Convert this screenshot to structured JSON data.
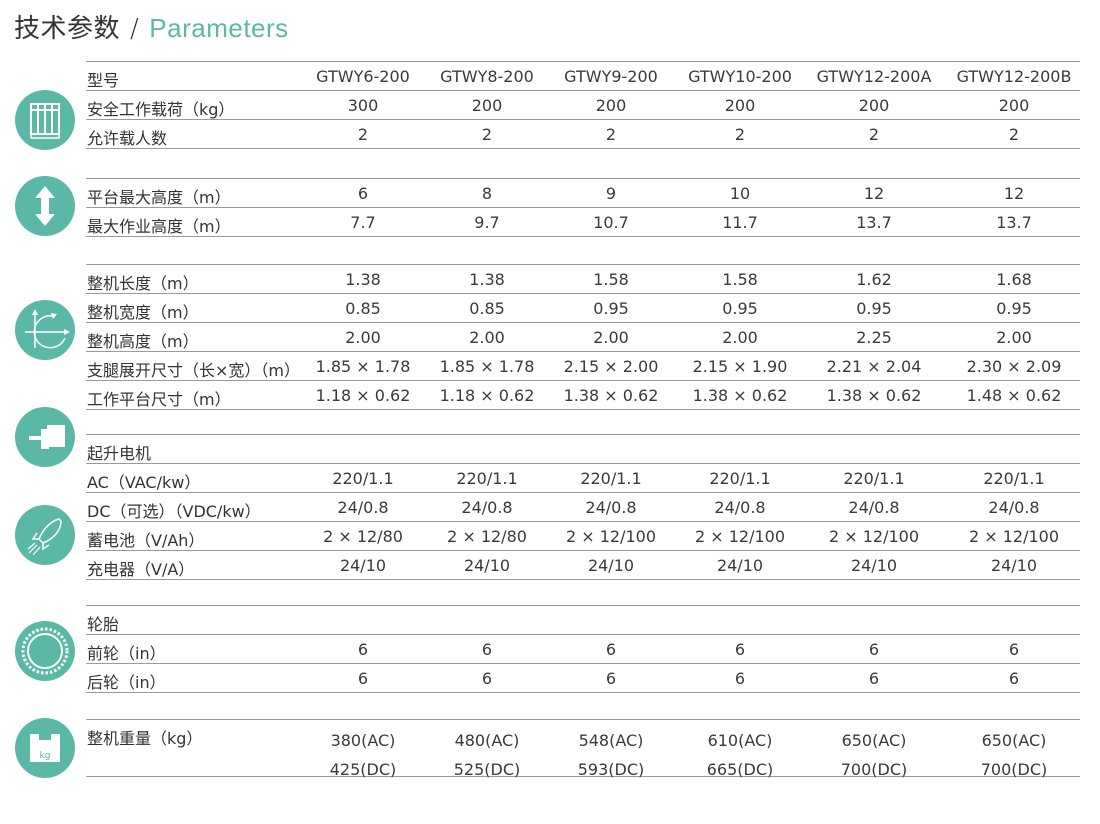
{
  "title": {
    "zh": "技术参数",
    "separator": "/",
    "en": "Parameters"
  },
  "colors": {
    "accent": "#5cb8a6",
    "rule": "#9a9a9a",
    "text": "#3a3a3a"
  },
  "groups": [
    {
      "icon": "cage-platform-icon",
      "rows": [
        {
          "label": "型号",
          "values": [
            "GTWY6-200",
            "GTWY8-200",
            "GTWY9-200",
            "GTWY10-200",
            "GTWY12-200A",
            "GTWY12-200B"
          ]
        },
        {
          "label": "安全工作载荷（kg）",
          "values": [
            "300",
            "200",
            "200",
            "200",
            "200",
            "200"
          ]
        },
        {
          "label": "允许载人数",
          "values": [
            "2",
            "2",
            "2",
            "2",
            "2",
            "2"
          ]
        }
      ]
    },
    {
      "icon": "vertical-arrows-icon",
      "rows": [
        {
          "label": "平台最大高度（m）",
          "values": [
            "6",
            "8",
            "9",
            "10",
            "12",
            "12"
          ]
        },
        {
          "label": "最大作业高度（m）",
          "values": [
            "7.7",
            "9.7",
            "10.7",
            "11.7",
            "13.7",
            "13.7"
          ]
        }
      ]
    },
    {
      "icon": "dimensions-axes-icon",
      "rows": [
        {
          "label": "整机长度（m）",
          "values": [
            "1.38",
            "1.38",
            "1.58",
            "1.58",
            "1.62",
            "1.68"
          ]
        },
        {
          "label": "整机宽度（m）",
          "values": [
            "0.85",
            "0.85",
            "0.95",
            "0.95",
            "0.95",
            "0.95"
          ]
        },
        {
          "label": "整机高度（m）",
          "values": [
            "2.00",
            "2.00",
            "2.00",
            "2.00",
            "2.25",
            "2.00"
          ]
        },
        {
          "label": "支腿展开尺寸（长×宽）（m）",
          "values": [
            "1.85 × 1.78",
            "1.85 × 1.78",
            "2.15 × 2.00",
            "2.15 × 1.90",
            "2.21 × 2.04",
            "2.30 × 2.09"
          ]
        },
        {
          "label": "工作平台尺寸（m）",
          "values": [
            "1.18 × 0.62",
            "1.18 × 0.62",
            "1.38 × 0.62",
            "1.38 × 0.62",
            "1.38 × 0.62",
            "1.48 × 0.62"
          ]
        }
      ]
    },
    {
      "icon": "motor-icon",
      "rows": [
        {
          "label": "起升电机",
          "values": []
        },
        {
          "label": "AC（VAC/kw）",
          "values": [
            "220/1.1",
            "220/1.1",
            "220/1.1",
            "220/1.1",
            "220/1.1",
            "220/1.1"
          ]
        },
        {
          "label": "DC（可选）（VDC/kw）",
          "values": [
            "24/0.8",
            "24/0.8",
            "24/0.8",
            "24/0.8",
            "24/0.8",
            "24/0.8"
          ]
        },
        {
          "label": "蓄电池（V/Ah）",
          "values": [
            "2 × 12/80",
            "2 × 12/80",
            "2 × 12/100",
            "2 × 12/100",
            "2 × 12/100",
            "2 × 12/100"
          ]
        },
        {
          "label": "充电器（V/A）",
          "values": [
            "24/10",
            "24/10",
            "24/10",
            "24/10",
            "24/10",
            "24/10"
          ]
        }
      ]
    },
    {
      "icon": "tire-gear-icon",
      "rows": [
        {
          "label": "轮胎",
          "values": []
        },
        {
          "label": "前轮（in）",
          "values": [
            "6",
            "6",
            "6",
            "6",
            "6",
            "6"
          ]
        },
        {
          "label": "后轮（in）",
          "values": [
            "6",
            "6",
            "6",
            "6",
            "6",
            "6"
          ]
        }
      ]
    },
    {
      "icon": "weight-kg-icon",
      "icon_text": "kg",
      "rows": [
        {
          "label": "整机重量（kg）",
          "double": true,
          "values": [
            "380(AC)\n425(DC)",
            "480(AC)\n525(DC)",
            "548(AC)\n593(DC)",
            "610(AC)\n665(DC)",
            "650(AC)\n700(DC)",
            "650(AC)\n700(DC)"
          ]
        }
      ]
    }
  ]
}
